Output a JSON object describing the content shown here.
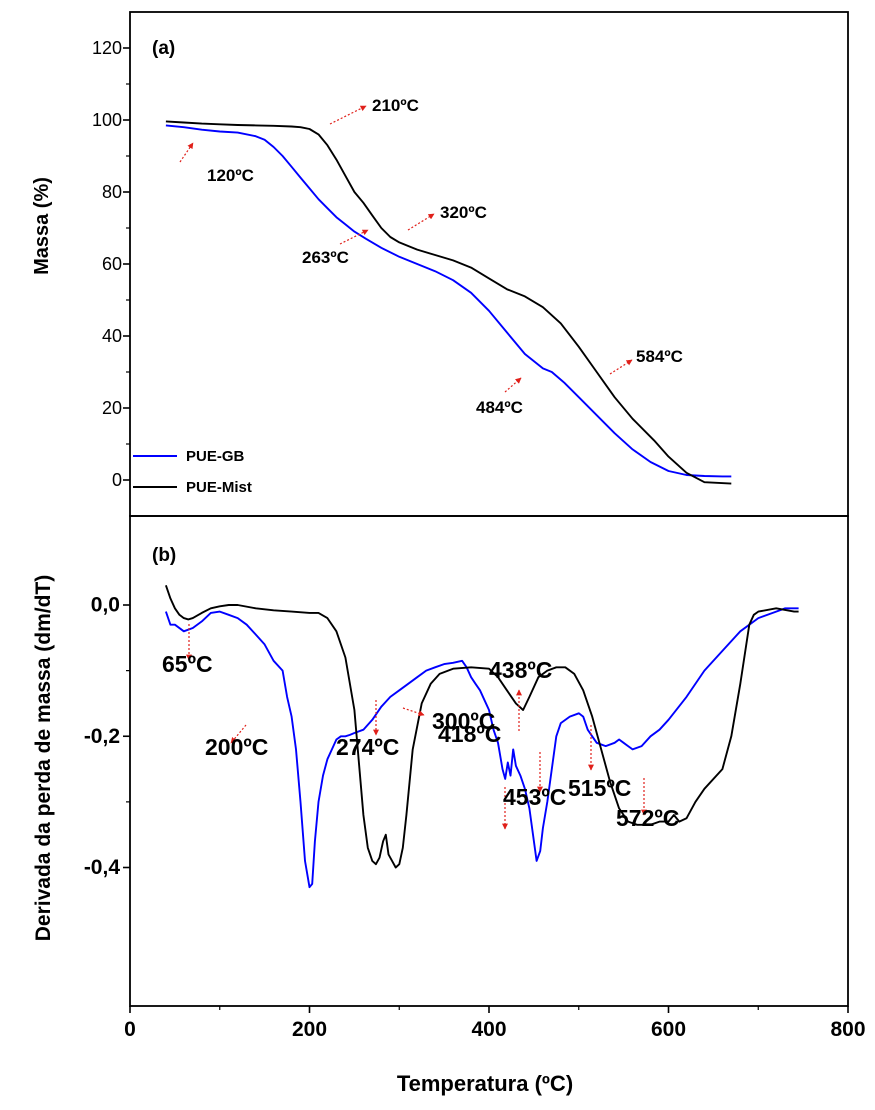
{
  "chart_data": [
    {
      "type": "line",
      "panel_label": "(a)",
      "ylabel": "Massa (%)",
      "xlabel": "",
      "ylim": [
        -10,
        130
      ],
      "xlim": [
        0,
        800
      ],
      "yticks": [
        0,
        20,
        40,
        60,
        80,
        100,
        120
      ],
      "legend_placement": "bottom-left",
      "series": [
        {
          "name": "PUE-GB",
          "color": "#0000ff",
          "x": [
            40,
            60,
            80,
            100,
            120,
            140,
            150,
            160,
            170,
            180,
            190,
            200,
            210,
            220,
            230,
            240,
            250,
            263,
            280,
            300,
            320,
            340,
            360,
            380,
            400,
            420,
            440,
            460,
            470,
            484,
            500,
            520,
            540,
            560,
            580,
            600,
            620,
            640,
            660,
            670
          ],
          "y": [
            98.5,
            98,
            97.3,
            96.8,
            96.5,
            95.5,
            94.5,
            92.5,
            90,
            87,
            84,
            81,
            78,
            75.5,
            73,
            71,
            69,
            67,
            64.5,
            62,
            60,
            58,
            55.5,
            52,
            47,
            41,
            35,
            31,
            30,
            27,
            23,
            18,
            13,
            8.5,
            5,
            2.5,
            1.4,
            1.1,
            1,
            1
          ]
        },
        {
          "name": "PUE-Mist",
          "color": "#000000",
          "x": [
            40,
            60,
            80,
            100,
            120,
            140,
            160,
            180,
            190,
            200,
            210,
            220,
            230,
            240,
            250,
            260,
            270,
            280,
            290,
            300,
            310,
            320,
            340,
            360,
            380,
            400,
            420,
            440,
            460,
            480,
            500,
            520,
            540,
            560,
            584,
            600,
            620,
            640,
            670
          ],
          "y": [
            99.6,
            99.3,
            99,
            98.8,
            98.6,
            98.5,
            98.4,
            98.2,
            98,
            97.5,
            96,
            93,
            89,
            84.5,
            80,
            77,
            73.5,
            70,
            67.5,
            66,
            65,
            64,
            62.5,
            61,
            59,
            56,
            53,
            51,
            48,
            43.5,
            37,
            30,
            23,
            17,
            11,
            6.5,
            2,
            -0.6,
            -1
          ]
        }
      ],
      "annotations": [
        {
          "text": "120ºC",
          "x": 120,
          "y": 97
        },
        {
          "text": "210ºC",
          "x": 210,
          "y": 97.5
        },
        {
          "text": "263ºC",
          "x": 263,
          "y": 69
        },
        {
          "text": "320ºC",
          "x": 320,
          "y": 68.5
        },
        {
          "text": "484ºC",
          "x": 484,
          "y": 31
        },
        {
          "text": "584ºC",
          "x": 584,
          "y": 31
        }
      ]
    },
    {
      "type": "line",
      "panel_label": "(b)",
      "ylabel": "Derivada da perda de massa (dm/dT)",
      "xlabel": "Temperatura (ºC)",
      "ylim": [
        -0.47,
        0.1
      ],
      "xlim": [
        0,
        800
      ],
      "yticks": [
        0,
        -0.2,
        -0.4
      ],
      "ytick_labels": [
        "0,0",
        "-0,2",
        "-0,4"
      ],
      "xticks": [
        0,
        200,
        400,
        600,
        800
      ],
      "series": [
        {
          "name": "PUE-GB",
          "color": "#0000ff",
          "x": [
            40,
            45,
            50,
            60,
            70,
            80,
            90,
            100,
            110,
            120,
            130,
            140,
            150,
            160,
            170,
            175,
            180,
            185,
            190,
            195,
            200,
            203,
            206,
            210,
            215,
            220,
            225,
            230,
            235,
            240,
            245,
            250,
            260,
            270,
            280,
            290,
            300,
            310,
            320,
            330,
            340,
            350,
            360,
            370,
            375,
            380,
            385,
            390,
            395,
            400,
            405,
            410,
            415,
            418,
            421,
            424,
            427,
            430,
            435,
            440,
            445,
            450,
            453,
            457,
            460,
            465,
            470,
            475,
            480,
            490,
            500,
            505,
            510,
            515,
            520,
            530,
            540,
            545,
            550,
            555,
            560,
            570,
            580,
            590,
            600,
            620,
            640,
            660,
            680,
            700,
            720,
            730,
            745
          ],
          "y": [
            -0.01,
            -0.03,
            -0.03,
            -0.04,
            -0.035,
            -0.025,
            -0.012,
            -0.01,
            -0.015,
            -0.02,
            -0.03,
            -0.045,
            -0.06,
            -0.085,
            -0.1,
            -0.14,
            -0.17,
            -0.22,
            -0.3,
            -0.39,
            -0.43,
            -0.425,
            -0.36,
            -0.3,
            -0.26,
            -0.235,
            -0.22,
            -0.205,
            -0.2,
            -0.2,
            -0.198,
            -0.195,
            -0.19,
            -0.175,
            -0.155,
            -0.14,
            -0.13,
            -0.12,
            -0.11,
            -0.1,
            -0.095,
            -0.09,
            -0.088,
            -0.085,
            -0.095,
            -0.11,
            -0.12,
            -0.13,
            -0.145,
            -0.16,
            -0.19,
            -0.21,
            -0.25,
            -0.265,
            -0.24,
            -0.26,
            -0.22,
            -0.245,
            -0.26,
            -0.28,
            -0.31,
            -0.36,
            -0.39,
            -0.375,
            -0.34,
            -0.3,
            -0.25,
            -0.2,
            -0.18,
            -0.17,
            -0.165,
            -0.17,
            -0.19,
            -0.2,
            -0.21,
            -0.215,
            -0.21,
            -0.205,
            -0.21,
            -0.215,
            -0.22,
            -0.215,
            -0.2,
            -0.19,
            -0.175,
            -0.14,
            -0.1,
            -0.07,
            -0.04,
            -0.02,
            -0.01,
            -0.005,
            -0.005
          ]
        },
        {
          "name": "PUE-Mist",
          "color": "#000000",
          "x": [
            40,
            45,
            50,
            55,
            60,
            65,
            70,
            80,
            90,
            100,
            110,
            120,
            140,
            160,
            180,
            200,
            210,
            220,
            230,
            240,
            250,
            255,
            260,
            265,
            270,
            274,
            278,
            282,
            285,
            288,
            292,
            296,
            300,
            304,
            308,
            315,
            325,
            335,
            345,
            360,
            380,
            400,
            410,
            420,
            430,
            438,
            445,
            455,
            465,
            475,
            485,
            495,
            505,
            515,
            525,
            535,
            545,
            555,
            565,
            572,
            580,
            590,
            600,
            606,
            612,
            620,
            630,
            640,
            660,
            670,
            680,
            690,
            695,
            700,
            720,
            740,
            745
          ],
          "y": [
            0.03,
            0.01,
            -0.005,
            -0.015,
            -0.02,
            -0.022,
            -0.02,
            -0.012,
            -0.005,
            -0.002,
            0.0,
            0.0,
            -0.005,
            -0.008,
            -0.01,
            -0.012,
            -0.012,
            -0.02,
            -0.04,
            -0.08,
            -0.16,
            -0.24,
            -0.32,
            -0.37,
            -0.39,
            -0.395,
            -0.385,
            -0.36,
            -0.35,
            -0.38,
            -0.39,
            -0.4,
            -0.395,
            -0.37,
            -0.32,
            -0.22,
            -0.15,
            -0.12,
            -0.105,
            -0.097,
            -0.095,
            -0.097,
            -0.11,
            -0.13,
            -0.15,
            -0.16,
            -0.14,
            -0.11,
            -0.1,
            -0.095,
            -0.095,
            -0.105,
            -0.13,
            -0.17,
            -0.22,
            -0.27,
            -0.31,
            -0.33,
            -0.335,
            -0.335,
            -0.335,
            -0.33,
            -0.33,
            -0.32,
            -0.33,
            -0.325,
            -0.3,
            -0.28,
            -0.25,
            -0.2,
            -0.12,
            -0.03,
            -0.015,
            -0.01,
            -0.005,
            -0.01,
            -0.01
          ]
        }
      ],
      "annotations": [
        {
          "text": "65ºC",
          "x": 65,
          "y": -0.022
        },
        {
          "text": "200ºC",
          "x": 200,
          "y": -0.43
        },
        {
          "text": "274ºC",
          "x": 274,
          "y": -0.395
        },
        {
          "text": "300ºC",
          "x": 300,
          "y": -0.4
        },
        {
          "text": "418ºC",
          "x": 418,
          "y": -0.265
        },
        {
          "text": "438ºC",
          "x": 438,
          "y": -0.16
        },
        {
          "text": "453ºC",
          "x": 453,
          "y": -0.39
        },
        {
          "text": "515ºC",
          "x": 515,
          "y": -0.2
        },
        {
          "text": "572ºC",
          "x": 572,
          "y": -0.335
        }
      ]
    }
  ],
  "annotation_arrow_color": "#e0201a"
}
